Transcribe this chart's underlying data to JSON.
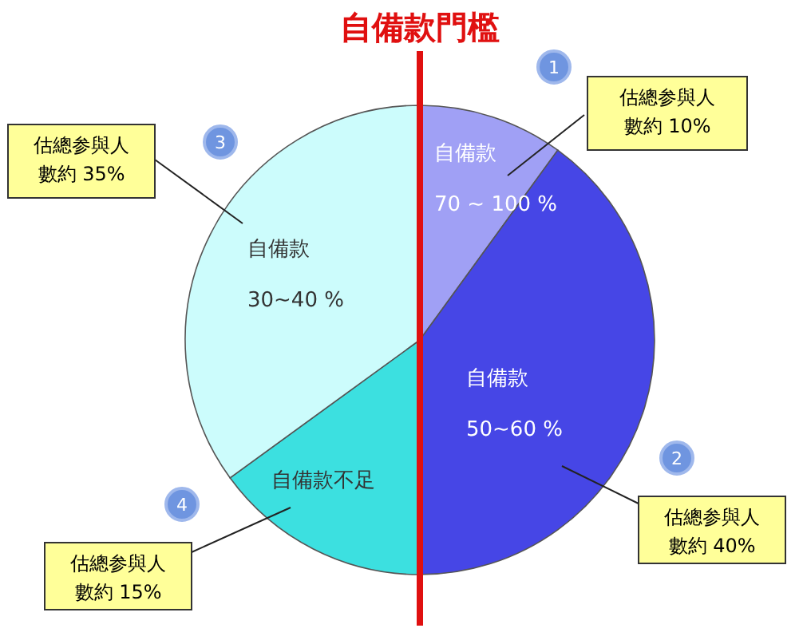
{
  "chart_data": {
    "type": "pie",
    "title": "自備款門檻",
    "categories": [
      "自備款\n70 ~ 100 %",
      "自備款\n50~60 %",
      "自備款不足",
      "自備款\n30~40 %"
    ],
    "values": [
      10,
      40,
      15,
      35
    ],
    "colors": [
      "#a0a0f5",
      "#4646e6",
      "#3ce0e0",
      "#ccfcfc"
    ],
    "annotations": [
      "1",
      "估總参與人數約 10%",
      "2",
      "估總参與人數約 40%",
      "4",
      "估總参與人數約 15%",
      "3",
      "估總参與人數約 35%"
    ]
  }
}
